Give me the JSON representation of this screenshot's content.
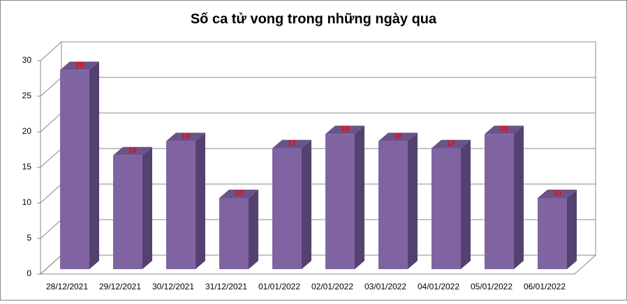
{
  "chart_data": {
    "type": "bar3d",
    "title": "Số ca tử vong trong những ngày qua",
    "categories": [
      "28/12/2021",
      "29/12/2021",
      "30/12/2021",
      "31/12/2021",
      "01/01/2022",
      "02/01/2022",
      "03/01/2022",
      "04/01/2022",
      "05/01/2022",
      "06/01/2022"
    ],
    "values": [
      28,
      16,
      18,
      10,
      17,
      19,
      18,
      17,
      19,
      10
    ],
    "color": "#8064a2",
    "ylim": [
      0,
      30
    ],
    "yticks": [
      0,
      5,
      10,
      15,
      20,
      25,
      30
    ],
    "grid": true
  }
}
